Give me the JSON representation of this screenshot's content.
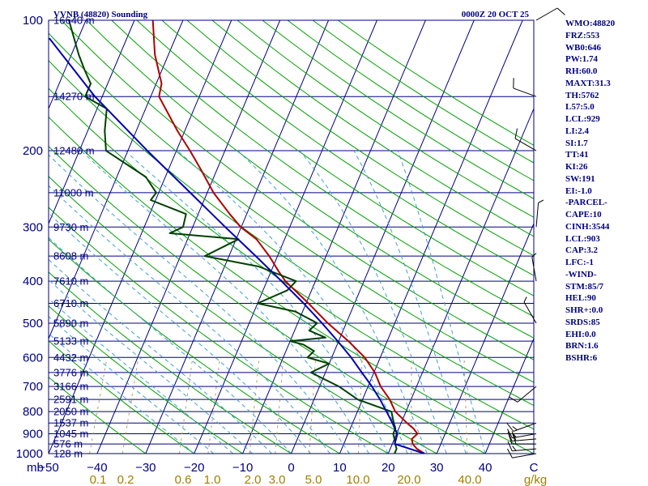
{
  "header": {
    "station": "VVNB (48820) Sounding",
    "time": "0000Z 20 OCT 25"
  },
  "axes": {
    "pressure_label_unit": "mb",
    "pressure_ticks": [
      100,
      200,
      300,
      400,
      500,
      600,
      700,
      800,
      900,
      1000
    ],
    "temperature_ticks": [
      -50,
      -40,
      -30,
      -20,
      -10,
      0,
      10,
      20,
      30,
      40
    ],
    "temperature_labels": [
      "−50",
      "−40",
      "−30",
      "−20",
      "−10",
      "0",
      "10",
      "20",
      "30",
      "40"
    ],
    "t_range": [
      -50,
      50
    ],
    "p_range": [
      100,
      1000
    ],
    "mixing_ratio_labels": [
      "0.1",
      "0.2",
      "0.6",
      "1.0",
      "2.0",
      "3.0",
      "5.0",
      "10.0",
      "20.0",
      "40.0"
    ],
    "mixing_ratio_unit": "g/kg",
    "corner_label": "C"
  },
  "height_levels": [
    {
      "p": 100,
      "label": "16640 m"
    },
    {
      "p": 150,
      "label": "14270 m"
    },
    {
      "p": 200,
      "label": "12480 m"
    },
    {
      "p": 250,
      "label": "11000 m"
    },
    {
      "p": 300,
      "label": "9730 m"
    },
    {
      "p": 350,
      "label": "8608 m"
    },
    {
      "p": 400,
      "label": "7610 m"
    },
    {
      "p": 450,
      "label": "6710 m"
    },
    {
      "p": 500,
      "label": "5890 m"
    },
    {
      "p": 550,
      "label": "5133 m"
    },
    {
      "p": 600,
      "label": "4432 m"
    },
    {
      "p": 650,
      "label": "3776 m"
    },
    {
      "p": 700,
      "label": "3166 m"
    },
    {
      "p": 750,
      "label": "2591 m"
    },
    {
      "p": 800,
      "label": "2050 m"
    },
    {
      "p": 850,
      "label": "1537 m"
    },
    {
      "p": 900,
      "label": "1045 m"
    },
    {
      "p": 950,
      "label": "576 m"
    },
    {
      "p": 1000,
      "label": "128 m"
    }
  ],
  "indices": [
    "WMO:48820",
    "FRZ:553",
    "WB0:646",
    "PW:1.74",
    "RH:60.0",
    "MAXT:31.3",
    "TH:5762",
    "L57:5.0",
    "LCL:929",
    "LI:2.4",
    "SI:1.7",
    "TT:41",
    "KI:26",
    "SW:191",
    "EI:-1.0",
    "-PARCEL-",
    "CAPE:10",
    "CINH:3544",
    "LCL:903",
    "CAP:3.2",
    "LFC:-1",
    "-WIND-",
    "STM:85/7",
    "HEL:90",
    "SHR+:0.0",
    "SRDS:85",
    "EHI:0.0",
    "BRN:1.6",
    "BSHR:6"
  ],
  "colors": {
    "isobar": "#000080",
    "isotherm": "#000080",
    "dry_adiabat": "#00a000",
    "moist_adiabat": "#40a0d0",
    "mixing_ratio": "#b0a060",
    "temperature": "#b00000",
    "dewpoint": "#004000",
    "parcel": "#0000b0"
  },
  "chart_data": {
    "type": "skew-t",
    "title": "VVNB (48820) Sounding",
    "xlabel": "",
    "ylabel": "mb",
    "xlim": [
      -50,
      50
    ],
    "ylim": [
      1000,
      100
    ],
    "series": [
      {
        "key": "temperature",
        "points": [
          [
            1000,
            27.5
          ],
          [
            975,
            25.5
          ],
          [
            950,
            24.2
          ],
          [
            925,
            23.6
          ],
          [
            900,
            24.3
          ],
          [
            875,
            23.0
          ],
          [
            850,
            21.2
          ],
          [
            800,
            17.8
          ],
          [
            750,
            15.6
          ],
          [
            700,
            12.6
          ],
          [
            650,
            10.2
          ],
          [
            600,
            6.8
          ],
          [
            550,
            2.0
          ],
          [
            500,
            -3.8
          ],
          [
            450,
            -9.5
          ],
          [
            400,
            -16.2
          ],
          [
            380,
            -18.4
          ],
          [
            350,
            -21.7
          ],
          [
            320,
            -25.8
          ],
          [
            300,
            -30.1
          ],
          [
            280,
            -33.5
          ],
          [
            250,
            -38.7
          ],
          [
            220,
            -43.5
          ],
          [
            200,
            -47.2
          ],
          [
            180,
            -51.5
          ],
          [
            150,
            -58.3
          ],
          [
            140,
            -58.9
          ],
          [
            120,
            -62.8
          ],
          [
            100,
            -66.2
          ]
        ]
      },
      {
        "key": "dewpoint",
        "points": [
          [
            1000,
            21.3
          ],
          [
            975,
            21.3
          ],
          [
            950,
            20.6
          ],
          [
            925,
            20.0
          ],
          [
            900,
            19.3
          ],
          [
            875,
            19.3
          ],
          [
            850,
            18.5
          ],
          [
            800,
            17.0
          ],
          [
            750,
            9.0
          ],
          [
            700,
            4.0
          ],
          [
            650,
            -3.0
          ],
          [
            620,
            0.0
          ],
          [
            600,
            -5.0
          ],
          [
            580,
            -4.2
          ],
          [
            560,
            -7.0
          ],
          [
            550,
            -10.0
          ],
          [
            540,
            -3.0
          ],
          [
            520,
            -7.0
          ],
          [
            500,
            -6.0
          ],
          [
            470,
            -11.5
          ],
          [
            450,
            -20.0
          ],
          [
            420,
            -15.0
          ],
          [
            400,
            -14.0
          ],
          [
            370,
            -23.0
          ],
          [
            350,
            -35.0
          ],
          [
            320,
            -29.5
          ],
          [
            310,
            -44.2
          ],
          [
            300,
            -42.0
          ],
          [
            280,
            -42.5
          ],
          [
            260,
            -51.0
          ],
          [
            250,
            -50.5
          ],
          [
            230,
            -54.0
          ],
          [
            200,
            -64.5
          ],
          [
            180,
            -66.5
          ],
          [
            160,
            -68.0
          ],
          [
            150,
            -73.5
          ],
          [
            140,
            -73.5
          ],
          [
            130,
            -76.0
          ],
          [
            120,
            -78.5
          ],
          [
            100,
            -83.5
          ]
        ]
      },
      {
        "key": "parcel",
        "points": [
          [
            1000,
            27.5
          ],
          [
            950,
            20.5
          ],
          [
            903,
            20.2
          ],
          [
            850,
            18.2
          ],
          [
            800,
            16.0
          ],
          [
            750,
            13.6
          ],
          [
            700,
            10.8
          ],
          [
            650,
            7.5
          ],
          [
            600,
            4.0
          ],
          [
            550,
            -0.2
          ],
          [
            500,
            -5.0
          ],
          [
            450,
            -10.5
          ],
          [
            400,
            -17.0
          ],
          [
            350,
            -24.5
          ],
          [
            300,
            -33.3
          ],
          [
            250,
            -43.5
          ],
          [
            200,
            -56.0
          ],
          [
            150,
            -71.5
          ],
          [
            110,
            -86.0
          ]
        ]
      }
    ],
    "wind_barbs": [
      {
        "p": 1000,
        "dir": 260,
        "spd": 10
      },
      {
        "p": 975,
        "dir": 265,
        "spd": 15
      },
      {
        "p": 950,
        "dir": 270,
        "spd": 20
      },
      {
        "p": 925,
        "dir": 265,
        "spd": 20
      },
      {
        "p": 900,
        "dir": 260,
        "spd": 15
      },
      {
        "p": 850,
        "dir": 250,
        "spd": 15
      },
      {
        "p": 700,
        "dir": 230,
        "spd": 10
      },
      {
        "p": 500,
        "dir": 330,
        "spd": 5
      },
      {
        "p": 400,
        "dir": 350,
        "spd": 5
      },
      {
        "p": 300,
        "dir": 5,
        "spd": 5
      },
      {
        "p": 200,
        "dir": 300,
        "spd": 10
      },
      {
        "p": 150,
        "dir": 290,
        "spd": 10
      },
      {
        "p": 100,
        "dir": 60,
        "spd": 10
      }
    ]
  }
}
